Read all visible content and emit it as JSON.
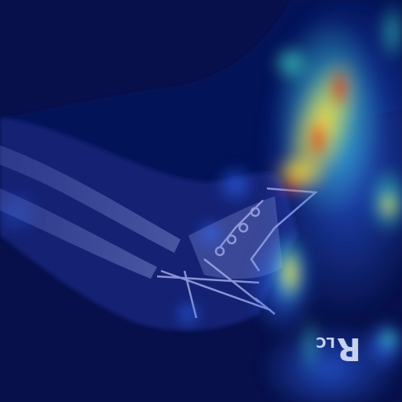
{
  "image": {
    "description_kind": "radiograph-heatmap-overlay",
    "colors": {
      "background": "#07104a",
      "bone": "#9aa6e0",
      "heat_low": "#2a5bff",
      "heat_mid": "#2bd1c9",
      "heat_high": "#ffe13a",
      "heat_peak": "#e02010"
    }
  },
  "marker": {
    "primary": "R",
    "secondary": "LC"
  }
}
